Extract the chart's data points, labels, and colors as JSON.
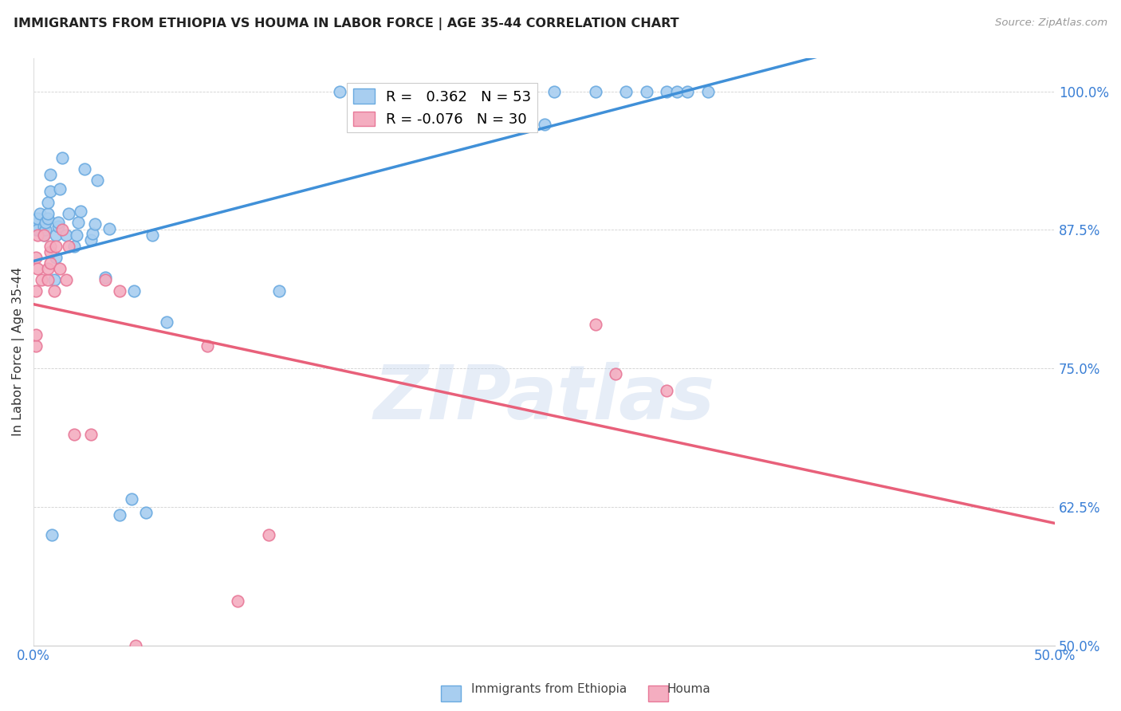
{
  "title": "IMMIGRANTS FROM ETHIOPIA VS HOUMA IN LABOR FORCE | AGE 35-44 CORRELATION CHART",
  "source": "Source: ZipAtlas.com",
  "ylabel": "In Labor Force | Age 35-44",
  "xlim": [
    0.0,
    0.5
  ],
  "ylim": [
    0.5,
    1.03
  ],
  "xticks": [
    0.0,
    0.05,
    0.1,
    0.15,
    0.2,
    0.25,
    0.3,
    0.35,
    0.4,
    0.45,
    0.5
  ],
  "yticks": [
    0.5,
    0.625,
    0.75,
    0.875,
    1.0
  ],
  "ytick_labels": [
    "50.0%",
    "62.5%",
    "75.0%",
    "87.5%",
    "100.0%"
  ],
  "xtick_labels": [
    "0.0%",
    "",
    "",
    "",
    "",
    "",
    "",
    "",
    "",
    "",
    "50.0%"
  ],
  "ethiopia_color": "#a8cef0",
  "houma_color": "#f4adc0",
  "ethiopia_edge": "#6aaae0",
  "houma_edge": "#e87898",
  "trendline_ethiopia_color": "#4090d8",
  "trendline_houma_color": "#e8607a",
  "watermark": "ZIPatlas",
  "legend_label_eth": "R =   0.362   N = 53",
  "legend_label_houma": "R = -0.076   N = 30",
  "ethiopia_x": [
    0.001,
    0.001,
    0.002,
    0.002,
    0.003,
    0.005,
    0.005,
    0.006,
    0.006,
    0.007,
    0.007,
    0.007,
    0.008,
    0.008,
    0.009,
    0.01,
    0.011,
    0.011,
    0.012,
    0.012,
    0.013,
    0.014,
    0.016,
    0.017,
    0.02,
    0.021,
    0.022,
    0.023,
    0.025,
    0.028,
    0.029,
    0.03,
    0.031,
    0.035,
    0.037,
    0.042,
    0.048,
    0.049,
    0.055,
    0.058,
    0.065,
    0.12,
    0.15,
    0.185,
    0.25,
    0.255,
    0.275,
    0.29,
    0.3,
    0.31,
    0.315,
    0.32,
    0.33
  ],
  "ethiopia_y": [
    0.875,
    0.88,
    0.875,
    0.885,
    0.89,
    0.87,
    0.878,
    0.875,
    0.882,
    0.885,
    0.89,
    0.9,
    0.91,
    0.925,
    0.6,
    0.83,
    0.85,
    0.87,
    0.878,
    0.882,
    0.912,
    0.94,
    0.87,
    0.89,
    0.86,
    0.87,
    0.882,
    0.892,
    0.93,
    0.866,
    0.872,
    0.88,
    0.92,
    0.832,
    0.876,
    0.618,
    0.632,
    0.82,
    0.62,
    0.87,
    0.792,
    0.82,
    1.0,
    1.0,
    0.97,
    1.0,
    1.0,
    1.0,
    1.0,
    1.0,
    1.0,
    1.0,
    1.0
  ],
  "houma_x": [
    0.001,
    0.001,
    0.001,
    0.001,
    0.002,
    0.002,
    0.004,
    0.005,
    0.007,
    0.007,
    0.008,
    0.008,
    0.008,
    0.01,
    0.011,
    0.013,
    0.014,
    0.016,
    0.017,
    0.02,
    0.028,
    0.035,
    0.042,
    0.05,
    0.085,
    0.1,
    0.115,
    0.275,
    0.285,
    0.31
  ],
  "houma_y": [
    0.77,
    0.78,
    0.82,
    0.85,
    0.84,
    0.87,
    0.83,
    0.87,
    0.83,
    0.84,
    0.845,
    0.855,
    0.86,
    0.82,
    0.86,
    0.84,
    0.875,
    0.83,
    0.86,
    0.69,
    0.69,
    0.83,
    0.82,
    0.5,
    0.77,
    0.54,
    0.6,
    0.79,
    0.745,
    0.73
  ]
}
